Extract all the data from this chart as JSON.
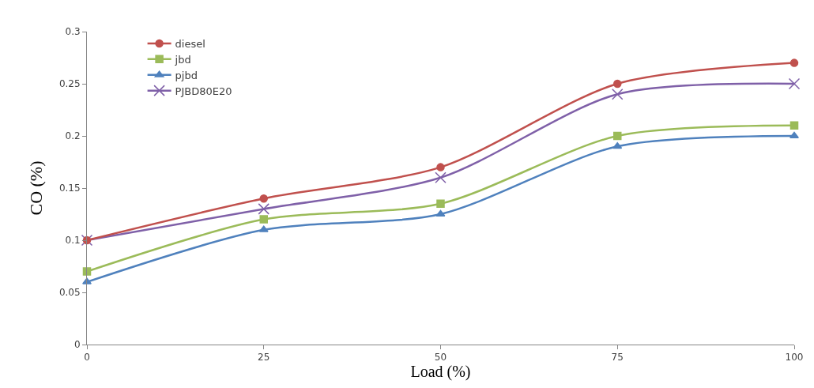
{
  "chart_data": {
    "type": "line",
    "xlabel": "Load (%)",
    "ylabel": "CO (%)",
    "x": [
      0,
      25,
      50,
      75,
      100
    ],
    "series": [
      {
        "name": "diesel",
        "color": "#c0504d",
        "marker": "circle",
        "values": [
          0.1,
          0.14,
          0.17,
          0.25,
          0.27
        ]
      },
      {
        "name": "jbd",
        "color": "#9bbb59",
        "marker": "square",
        "values": [
          0.07,
          0.12,
          0.135,
          0.2,
          0.21
        ]
      },
      {
        "name": "pjbd",
        "color": "#4f81bd",
        "marker": "triangle",
        "values": [
          0.06,
          0.11,
          0.125,
          0.19,
          0.2
        ]
      },
      {
        "name": "PJBD80E20",
        "color": "#7f60a8",
        "marker": "cross",
        "values": [
          0.1,
          0.13,
          0.16,
          0.24,
          0.25
        ]
      }
    ],
    "xlim": [
      0,
      100
    ],
    "xticks": [
      0,
      25,
      50,
      75,
      100
    ],
    "ylim": [
      0,
      0.3
    ],
    "yticks": [
      {
        "value": 0,
        "label": "0"
      },
      0.05,
      0.1,
      0.15,
      0.2,
      0.25,
      0.3
    ],
    "legend": "top left",
    "line_style": "solid"
  }
}
